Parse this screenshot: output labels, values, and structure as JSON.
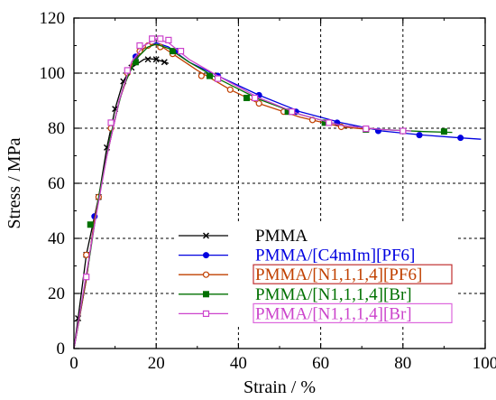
{
  "chart_data": {
    "type": "line",
    "title": "",
    "xlabel": "Strain / %",
    "ylabel": "Stress / MPa",
    "xlim": [
      0,
      100
    ],
    "ylim": [
      0,
      120
    ],
    "x_ticks": [
      0,
      20,
      40,
      60,
      80,
      100
    ],
    "y_ticks": [
      0,
      20,
      40,
      60,
      80,
      100,
      120
    ],
    "x_tick_labels": [
      "0",
      "20",
      "40",
      "60",
      "80",
      "100"
    ],
    "y_tick_labels": [
      "0",
      "20",
      "40",
      "60",
      "80",
      "100",
      "120"
    ],
    "grid": true,
    "legend_position": "lower-right",
    "series": [
      {
        "name": "PMMA",
        "color": "#000000",
        "label_box_color": "",
        "marker": "x",
        "points": [
          [
            0,
            0
          ],
          [
            1,
            11
          ],
          [
            3,
            34
          ],
          [
            6,
            55
          ],
          [
            8,
            73
          ],
          [
            10,
            87
          ],
          [
            12,
            97
          ],
          [
            14,
            102
          ],
          [
            17,
            105
          ],
          [
            18,
            105.3
          ],
          [
            20,
            105
          ],
          [
            22,
            104
          ],
          [
            23,
            103.5
          ]
        ],
        "markers": [
          [
            1,
            11
          ],
          [
            3,
            34
          ],
          [
            6,
            55
          ],
          [
            8,
            73
          ],
          [
            10,
            87
          ],
          [
            12,
            97
          ],
          [
            14,
            102
          ],
          [
            18,
            105
          ],
          [
            20,
            105
          ],
          [
            22,
            104
          ]
        ]
      },
      {
        "name": "PMMA/[C4mIm][PF6]",
        "color": "#0000e0",
        "label_box_color": "",
        "marker": "filled-circle",
        "points": [
          [
            0,
            0
          ],
          [
            3,
            25
          ],
          [
            5,
            47
          ],
          [
            8,
            70
          ],
          [
            11,
            90
          ],
          [
            14,
            103
          ],
          [
            17,
            109
          ],
          [
            20,
            111
          ],
          [
            23,
            109.5
          ],
          [
            28,
            104
          ],
          [
            35,
            99
          ],
          [
            45,
            92
          ],
          [
            55,
            86
          ],
          [
            65,
            82
          ],
          [
            75,
            79
          ],
          [
            85,
            77.5
          ],
          [
            94,
            76.5
          ],
          [
            99,
            76
          ]
        ],
        "markers": [
          [
            5,
            48
          ],
          [
            15,
            106
          ],
          [
            25,
            108
          ],
          [
            35,
            99
          ],
          [
            45,
            92
          ],
          [
            54,
            86
          ],
          [
            64,
            82
          ],
          [
            74,
            79
          ],
          [
            84,
            77.5
          ],
          [
            94,
            76.5
          ]
        ]
      },
      {
        "name": "PMMA/[N1,1,1,4][PF6]",
        "color": "#c04000",
        "label_box_color": "#c03030",
        "marker": "open-circle",
        "points": [
          [
            0,
            0
          ],
          [
            3,
            25
          ],
          [
            5,
            47
          ],
          [
            8,
            70
          ],
          [
            11,
            90
          ],
          [
            14,
            103
          ],
          [
            17,
            109
          ],
          [
            19,
            110.5
          ],
          [
            21,
            110
          ],
          [
            24,
            107
          ],
          [
            30,
            101
          ],
          [
            38,
            94
          ],
          [
            45,
            89
          ],
          [
            55,
            84
          ],
          [
            65,
            80.5
          ],
          [
            72,
            79.5
          ]
        ],
        "markers": [
          [
            3,
            34
          ],
          [
            6,
            55
          ],
          [
            9,
            80
          ],
          [
            13,
            100
          ],
          [
            16,
            108
          ],
          [
            18,
            110
          ],
          [
            21,
            109.5
          ],
          [
            24,
            107
          ],
          [
            31,
            99
          ],
          [
            38,
            94
          ],
          [
            45,
            89
          ],
          [
            51,
            86
          ],
          [
            58,
            83
          ],
          [
            65,
            80.5
          ]
        ]
      },
      {
        "name": "PMMA/[N1,1,1,4][Br]",
        "color": "#007000",
        "label_box_color": "",
        "marker": "filled-square",
        "points": [
          [
            0,
            0
          ],
          [
            4,
            35
          ],
          [
            6,
            55
          ],
          [
            9,
            78
          ],
          [
            12,
            95
          ],
          [
            15,
            105
          ],
          [
            18,
            109.5
          ],
          [
            20,
            110.5
          ],
          [
            23,
            109
          ],
          [
            28,
            104
          ],
          [
            35,
            98
          ],
          [
            45,
            90.5
          ],
          [
            55,
            85
          ],
          [
            65,
            81
          ],
          [
            75,
            79.5
          ],
          [
            85,
            78.8
          ],
          [
            92,
            78.5
          ]
        ],
        "markers": [
          [
            4,
            45
          ],
          [
            15,
            104
          ],
          [
            24,
            108
          ],
          [
            33,
            99
          ],
          [
            42,
            91
          ],
          [
            52,
            86
          ],
          [
            61,
            82
          ],
          [
            71,
            79.5
          ],
          [
            80,
            79
          ],
          [
            90,
            78.8
          ]
        ]
      },
      {
        "name": "PMMA/[N1,1,1,4][Br]",
        "color": "#cc44cc",
        "label_box_color": "#dd66dd",
        "marker": "open-square",
        "points": [
          [
            0,
            0
          ],
          [
            2,
            18
          ],
          [
            5,
            45
          ],
          [
            8,
            70
          ],
          [
            11,
            90
          ],
          [
            14,
            104
          ],
          [
            17,
            110
          ],
          [
            20,
            112.5
          ],
          [
            23,
            111
          ],
          [
            28,
            105
          ],
          [
            35,
            99
          ],
          [
            45,
            91
          ],
          [
            55,
            85
          ],
          [
            65,
            81
          ],
          [
            75,
            79.5
          ],
          [
            82,
            79
          ]
        ],
        "markers": [
          [
            3,
            26
          ],
          [
            9,
            82
          ],
          [
            13,
            101
          ],
          [
            16,
            110
          ],
          [
            19,
            112.5
          ],
          [
            21,
            112.5
          ],
          [
            23,
            112
          ],
          [
            26,
            108
          ],
          [
            35,
            98
          ],
          [
            44,
            91
          ],
          [
            53,
            86
          ],
          [
            62,
            82
          ],
          [
            71,
            79.8
          ],
          [
            80,
            79
          ]
        ]
      }
    ]
  }
}
